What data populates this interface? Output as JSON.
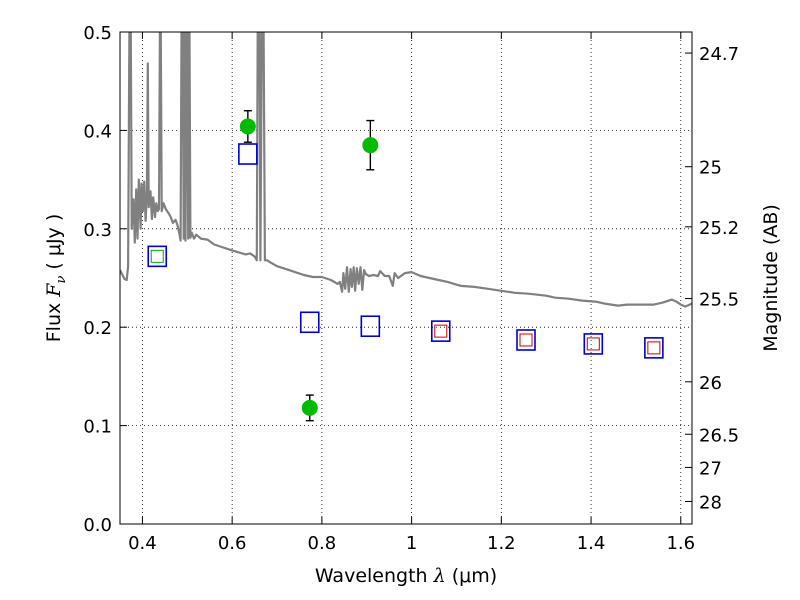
{
  "chart_data": {
    "type": "scatter",
    "title": "",
    "xlabel_pre": "Wavelength  ",
    "xlabel_math": "λ",
    "xlabel_post": " (μm)",
    "ylabel_pre": "Flux  ",
    "ylabel_math": "F",
    "ylabel_sub": "ν",
    "ylabel_post": "  ( μJy )",
    "y2label": "Magnitude (AB)",
    "xlim": [
      0.35,
      1.625
    ],
    "ylim": [
      0.0,
      0.5
    ],
    "grid": true,
    "x_ticks": [
      0.4,
      0.6,
      0.8,
      1.0,
      1.2,
      1.4,
      1.6
    ],
    "x_tick_labels": [
      "0.4",
      "0.6",
      "0.8",
      "1",
      "1.2",
      "1.4",
      "1.6"
    ],
    "y_ticks": [
      0.0,
      0.1,
      0.2,
      0.3,
      0.4,
      0.5
    ],
    "y_tick_labels": [
      "0.0",
      "0.1",
      "0.2",
      "0.3",
      "0.4",
      "0.5"
    ],
    "y2_ticks": [
      {
        "flux": 0.4786,
        "label": "24.7"
      },
      {
        "flux": 0.3631,
        "label": "25"
      },
      {
        "flux": 0.302,
        "label": "25.2"
      },
      {
        "flux": 0.2291,
        "label": "25.5"
      },
      {
        "flux": 0.1445,
        "label": "26"
      },
      {
        "flux": 0.0912,
        "label": "26.5"
      },
      {
        "flux": 0.0575,
        "label": "27"
      },
      {
        "flux": 0.0229,
        "label": "28"
      }
    ],
    "series": [
      {
        "kind": "measured",
        "color": "#00bb00",
        "points": [
          {
            "x": 0.635,
            "y": 0.404,
            "err": 0.016
          },
          {
            "x": 0.773,
            "y": 0.118,
            "err": 0.013
          },
          {
            "x": 0.908,
            "y": 0.385,
            "err": 0.025
          }
        ]
      },
      {
        "kind": "model-photometry",
        "color": "#0000cc",
        "points": [
          {
            "x": 0.433,
            "y": 0.272
          },
          {
            "x": 0.635,
            "y": 0.376
          },
          {
            "x": 0.773,
            "y": 0.205
          },
          {
            "x": 0.908,
            "y": 0.201
          },
          {
            "x": 1.065,
            "y": 0.196
          },
          {
            "x": 1.255,
            "y": 0.187
          },
          {
            "x": 1.405,
            "y": 0.183
          },
          {
            "x": 1.54,
            "y": 0.179
          }
        ]
      },
      {
        "kind": "inner-small-squares",
        "points": [
          {
            "x": 0.433,
            "y": 0.272,
            "color": "#00aa00"
          },
          {
            "x": 1.065,
            "y": 0.196,
            "color": "#cc0000"
          },
          {
            "x": 1.255,
            "y": 0.187,
            "color": "#cc0000"
          },
          {
            "x": 1.405,
            "y": 0.183,
            "color": "#cc0000"
          },
          {
            "x": 1.54,
            "y": 0.179,
            "color": "#cc0000"
          }
        ]
      },
      {
        "kind": "spectrum",
        "color": "#808080",
        "points": [
          [
            0.35,
            0.258
          ],
          [
            0.36,
            0.249
          ],
          [
            0.365,
            0.248
          ],
          [
            0.368,
            0.262
          ],
          [
            0.371,
            0.5
          ],
          [
            0.374,
            0.5
          ],
          [
            0.376,
            0.3
          ],
          [
            0.38,
            0.33
          ],
          [
            0.383,
            0.286
          ],
          [
            0.386,
            0.34
          ],
          [
            0.389,
            0.29
          ],
          [
            0.392,
            0.35
          ],
          [
            0.396,
            0.3
          ],
          [
            0.398,
            0.346
          ],
          [
            0.401,
            0.318
          ],
          [
            0.404,
            0.348
          ],
          [
            0.407,
            0.308
          ],
          [
            0.41,
            0.336
          ],
          [
            0.412,
            0.468
          ],
          [
            0.414,
            0.322
          ],
          [
            0.418,
            0.338
          ],
          [
            0.421,
            0.31
          ],
          [
            0.424,
            0.332
          ],
          [
            0.428,
            0.312
          ],
          [
            0.431,
            0.326
          ],
          [
            0.434,
            0.318
          ],
          [
            0.437,
            0.32
          ],
          [
            0.439,
            0.5
          ],
          [
            0.441,
            0.5
          ],
          [
            0.443,
            0.318
          ],
          [
            0.447,
            0.326
          ],
          [
            0.452,
            0.32
          ],
          [
            0.458,
            0.316
          ],
          [
            0.463,
            0.312
          ],
          [
            0.468,
            0.306
          ],
          [
            0.474,
            0.309
          ],
          [
            0.478,
            0.304
          ],
          [
            0.482,
            0.296
          ],
          [
            0.485,
            0.288
          ],
          [
            0.487,
            0.5
          ],
          [
            0.49,
            0.5
          ],
          [
            0.492,
            0.29
          ],
          [
            0.494,
            0.5
          ],
          [
            0.496,
            0.288
          ],
          [
            0.498,
            0.5
          ],
          [
            0.5,
            0.5
          ],
          [
            0.502,
            0.29
          ],
          [
            0.505,
            0.5
          ],
          [
            0.507,
            0.291
          ],
          [
            0.51,
            0.296
          ],
          [
            0.515,
            0.29
          ],
          [
            0.52,
            0.294
          ],
          [
            0.53,
            0.29
          ],
          [
            0.545,
            0.289
          ],
          [
            0.56,
            0.284
          ],
          [
            0.58,
            0.281
          ],
          [
            0.6,
            0.278
          ],
          [
            0.615,
            0.276
          ],
          [
            0.63,
            0.274
          ],
          [
            0.64,
            0.275
          ],
          [
            0.65,
            0.272
          ],
          [
            0.655,
            0.268
          ],
          [
            0.657,
            0.5
          ],
          [
            0.661,
            0.5
          ],
          [
            0.663,
            0.268
          ],
          [
            0.666,
            0.5
          ],
          [
            0.67,
            0.5
          ],
          [
            0.673,
            0.268
          ],
          [
            0.678,
            0.268
          ],
          [
            0.685,
            0.266
          ],
          [
            0.7,
            0.262
          ],
          [
            0.72,
            0.259
          ],
          [
            0.74,
            0.256
          ],
          [
            0.76,
            0.253
          ],
          [
            0.78,
            0.251
          ],
          [
            0.8,
            0.251
          ],
          [
            0.82,
            0.248
          ],
          [
            0.835,
            0.244
          ],
          [
            0.84,
            0.246
          ],
          [
            0.845,
            0.236
          ],
          [
            0.848,
            0.255
          ],
          [
            0.852,
            0.239
          ],
          [
            0.856,
            0.261
          ],
          [
            0.86,
            0.236
          ],
          [
            0.864,
            0.259
          ],
          [
            0.867,
            0.241
          ],
          [
            0.871,
            0.261
          ],
          [
            0.874,
            0.237
          ],
          [
            0.878,
            0.26
          ],
          [
            0.882,
            0.244
          ],
          [
            0.886,
            0.261
          ],
          [
            0.89,
            0.238
          ],
          [
            0.894,
            0.258
          ],
          [
            0.898,
            0.254
          ],
          [
            0.905,
            0.252
          ],
          [
            0.915,
            0.253
          ],
          [
            0.925,
            0.252
          ],
          [
            0.93,
            0.257
          ],
          [
            0.94,
            0.252
          ],
          [
            0.95,
            0.252
          ],
          [
            0.958,
            0.242
          ],
          [
            0.962,
            0.255
          ],
          [
            0.97,
            0.25
          ],
          [
            0.985,
            0.255
          ],
          [
            1.0,
            0.256
          ],
          [
            1.02,
            0.252
          ],
          [
            1.05,
            0.249
          ],
          [
            1.08,
            0.246
          ],
          [
            1.11,
            0.242
          ],
          [
            1.14,
            0.241
          ],
          [
            1.17,
            0.239
          ],
          [
            1.2,
            0.237
          ],
          [
            1.23,
            0.235
          ],
          [
            1.26,
            0.234
          ],
          [
            1.3,
            0.232
          ],
          [
            1.32,
            0.23
          ],
          [
            1.35,
            0.229
          ],
          [
            1.38,
            0.227
          ],
          [
            1.41,
            0.226
          ],
          [
            1.43,
            0.224
          ],
          [
            1.46,
            0.222
          ],
          [
            1.48,
            0.223
          ],
          [
            1.5,
            0.223
          ],
          [
            1.54,
            0.223
          ],
          [
            1.56,
            0.225
          ],
          [
            1.58,
            0.228
          ],
          [
            1.59,
            0.226
          ],
          [
            1.6,
            0.223
          ],
          [
            1.61,
            0.221
          ],
          [
            1.625,
            0.224
          ]
        ]
      }
    ]
  }
}
